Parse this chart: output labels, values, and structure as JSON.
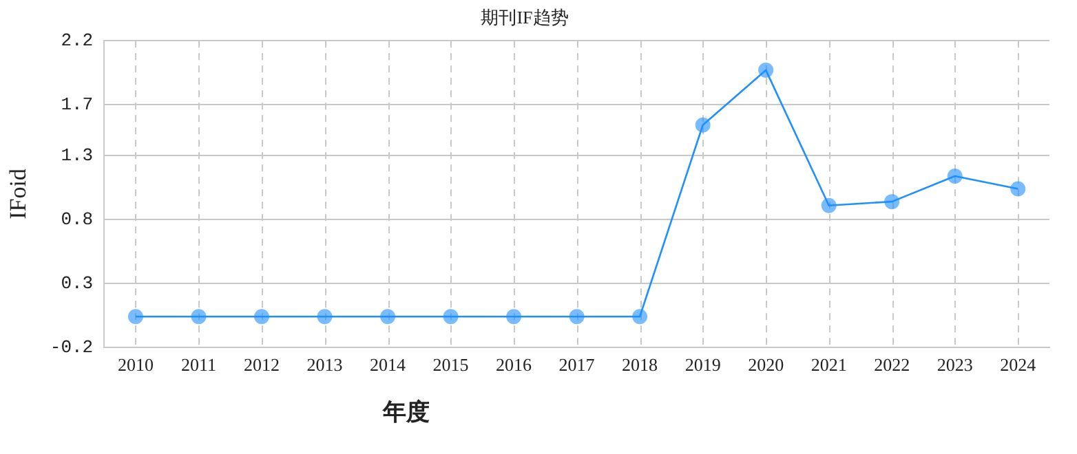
{
  "chart_data": {
    "type": "line",
    "title": "期刊IF趋势",
    "xlabel": "年度",
    "ylabel": "IFoid",
    "categories": [
      "2010",
      "2011",
      "2012",
      "2013",
      "2014",
      "2015",
      "2016",
      "2017",
      "2018",
      "2019",
      "2020",
      "2021",
      "2022",
      "2023",
      "2024"
    ],
    "series": [
      {
        "color": "#1e90ff",
        "values": [
          0.04,
          0.04,
          0.04,
          0.04,
          0.04,
          0.04,
          0.04,
          0.04,
          0.04,
          1.54,
          1.97,
          0.91,
          0.94,
          1.14,
          1.04
        ]
      }
    ],
    "ylim": [
      -0.2,
      2.2
    ],
    "yticks": [
      -0.2,
      0.3,
      0.8,
      1.3,
      1.7,
      2.2
    ],
    "grid": true,
    "marker": "circle",
    "line_style": "solid",
    "legend": false
  }
}
